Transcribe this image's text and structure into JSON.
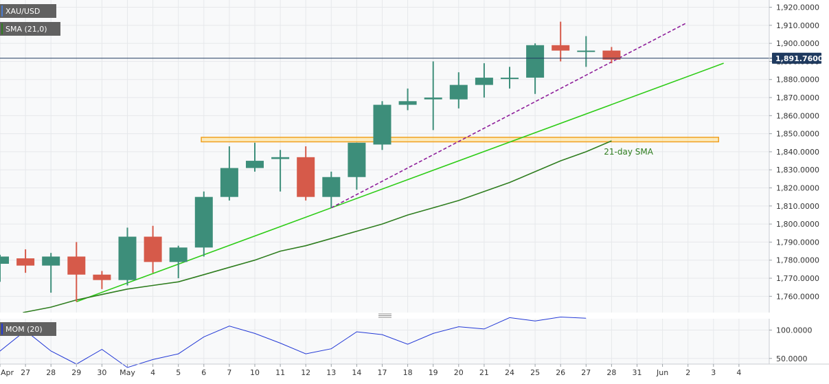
{
  "chart_data": {
    "type": "candlestick",
    "symbol": "XAU/USD",
    "indicator_label": "SMA (21,0)",
    "last_price": 1891.76,
    "last_price_label": "1,891.7600",
    "x_labels": [
      "Apr",
      "27",
      "28",
      "29",
      "30",
      "May",
      "4",
      "5",
      "6",
      "7",
      "10",
      "11",
      "12",
      "13",
      "14",
      "17",
      "18",
      "19",
      "20",
      "21",
      "24",
      "25",
      "26",
      "27",
      "28",
      "31",
      "Jun",
      "2",
      "3",
      "4"
    ],
    "y_ticks": [
      1760,
      1770,
      1780,
      1790,
      1800,
      1810,
      1820,
      1830,
      1840,
      1850,
      1860,
      1870,
      1880,
      1890,
      1900,
      1910,
      1920
    ],
    "y_tick_labels": [
      "1,760.0000",
      "1,770.0000",
      "1,780.0000",
      "1,790.0000",
      "1,800.0000",
      "1,810.0000",
      "1,820.0000",
      "1,830.0000",
      "1,840.0000",
      "1,850.0000",
      "1,860.0000",
      "1,870.0000",
      "1,880.0000",
      "1,890.0000",
      "1,900.0000",
      "1,910.0000",
      "1,920.0000"
    ],
    "ylim": [
      1751,
      1924
    ],
    "candles": [
      {
        "slot": 0,
        "o": 1778,
        "h": 1783,
        "l": 1768,
        "c": 1782
      },
      {
        "slot": 1,
        "o": 1781,
        "h": 1786,
        "l": 1773,
        "c": 1777
      },
      {
        "slot": 2,
        "o": 1777,
        "h": 1784,
        "l": 1762,
        "c": 1782
      },
      {
        "slot": 3,
        "o": 1782,
        "h": 1790,
        "l": 1757,
        "c": 1772
      },
      {
        "slot": 4,
        "o": 1772,
        "h": 1774,
        "l": 1764,
        "c": 1769
      },
      {
        "slot": 5,
        "o": 1769,
        "h": 1798,
        "l": 1766,
        "c": 1793
      },
      {
        "slot": 6,
        "o": 1793,
        "h": 1799,
        "l": 1773,
        "c": 1779
      },
      {
        "slot": 7,
        "o": 1779,
        "h": 1788,
        "l": 1770,
        "c": 1787
      },
      {
        "slot": 8,
        "o": 1787,
        "h": 1818,
        "l": 1782,
        "c": 1815
      },
      {
        "slot": 9,
        "o": 1815,
        "h": 1843,
        "l": 1813,
        "c": 1831
      },
      {
        "slot": 10,
        "o": 1831,
        "h": 1845,
        "l": 1829,
        "c": 1835
      },
      {
        "slot": 11,
        "o": 1836,
        "h": 1841,
        "l": 1818,
        "c": 1837
      },
      {
        "slot": 12,
        "o": 1837,
        "h": 1843,
        "l": 1813,
        "c": 1815
      },
      {
        "slot": 13,
        "o": 1815,
        "h": 1829,
        "l": 1809,
        "c": 1826
      },
      {
        "slot": 14,
        "o": 1826,
        "h": 1845,
        "l": 1819,
        "c": 1845
      },
      {
        "slot": 15,
        "o": 1844,
        "h": 1868,
        "l": 1841,
        "c": 1866
      },
      {
        "slot": 16,
        "o": 1866,
        "h": 1875,
        "l": 1863,
        "c": 1868
      },
      {
        "slot": 17,
        "o": 1869,
        "h": 1890,
        "l": 1852,
        "c": 1870
      },
      {
        "slot": 18,
        "o": 1869,
        "h": 1884,
        "l": 1864,
        "c": 1877
      },
      {
        "slot": 19,
        "o": 1877,
        "h": 1889,
        "l": 1870,
        "c": 1881
      },
      {
        "slot": 20,
        "o": 1881,
        "h": 1887,
        "l": 1875,
        "c": 1881
      },
      {
        "slot": 21,
        "o": 1881,
        "h": 1900,
        "l": 1872,
        "c": 1899
      },
      {
        "slot": 22,
        "o": 1899,
        "h": 1912,
        "l": 1890,
        "c": 1896
      },
      {
        "slot": 23,
        "o": 1896,
        "h": 1904,
        "l": 1887,
        "c": 1896
      },
      {
        "slot": 24,
        "o": 1896,
        "h": 1898,
        "l": 1889,
        "c": 1891
      }
    ],
    "sma_21": [
      {
        "slot": 0.9,
        "v": 1751
      },
      {
        "slot": 2,
        "v": 1754
      },
      {
        "slot": 3,
        "v": 1758
      },
      {
        "slot": 4,
        "v": 1761
      },
      {
        "slot": 5,
        "v": 1764
      },
      {
        "slot": 6,
        "v": 1766
      },
      {
        "slot": 7,
        "v": 1768
      },
      {
        "slot": 8,
        "v": 1772
      },
      {
        "slot": 9,
        "v": 1776
      },
      {
        "slot": 10,
        "v": 1780
      },
      {
        "slot": 11,
        "v": 1785
      },
      {
        "slot": 12,
        "v": 1788
      },
      {
        "slot": 13,
        "v": 1792
      },
      {
        "slot": 14,
        "v": 1796
      },
      {
        "slot": 15,
        "v": 1800
      },
      {
        "slot": 16,
        "v": 1805
      },
      {
        "slot": 17,
        "v": 1809
      },
      {
        "slot": 18,
        "v": 1813
      },
      {
        "slot": 19,
        "v": 1818
      },
      {
        "slot": 20,
        "v": 1823
      },
      {
        "slot": 21,
        "v": 1829
      },
      {
        "slot": 22,
        "v": 1835
      },
      {
        "slot": 23,
        "v": 1840
      },
      {
        "slot": 24,
        "v": 1846
      }
    ],
    "support_trendline": {
      "from": {
        "slot": 3,
        "v": 1757
      },
      "to": {
        "slot": 28.4,
        "v": 1889
      }
    },
    "dashed_trendline": {
      "from": {
        "slot": 13,
        "v": 1809
      },
      "to": {
        "slot": 26.9,
        "v": 1911
      }
    },
    "resistance_zone": {
      "slot_from": 7.9,
      "slot_to": 28.2,
      "v_low": 1845.5,
      "v_high": 1848
    },
    "sma_annotation": {
      "text": "21-day SMA",
      "slot": 23.7,
      "v": 1840
    },
    "momentum": {
      "label": "MOM (20)",
      "y_tick_labels": [
        "100.0000",
        "50.0000"
      ],
      "y_ticks": [
        100,
        50
      ],
      "ylim": [
        40,
        120
      ],
      "points": [
        {
          "slot": -1,
          "v": 47
        },
        {
          "slot": 0,
          "v": 63
        },
        {
          "slot": 1,
          "v": 99
        },
        {
          "slot": 2,
          "v": 63
        },
        {
          "slot": 3,
          "v": 40
        },
        {
          "slot": 4,
          "v": 66
        },
        {
          "slot": 5,
          "v": 34
        },
        {
          "slot": 6,
          "v": 48
        },
        {
          "slot": 7,
          "v": 58
        },
        {
          "slot": 8,
          "v": 88
        },
        {
          "slot": 9,
          "v": 107
        },
        {
          "slot": 10,
          "v": 94
        },
        {
          "slot": 11,
          "v": 77
        },
        {
          "slot": 12,
          "v": 58
        },
        {
          "slot": 13,
          "v": 67
        },
        {
          "slot": 14,
          "v": 97
        },
        {
          "slot": 15,
          "v": 92
        },
        {
          "slot": 16,
          "v": 75
        },
        {
          "slot": 17,
          "v": 94
        },
        {
          "slot": 18,
          "v": 106
        },
        {
          "slot": 19,
          "v": 102
        },
        {
          "slot": 20,
          "v": 122
        },
        {
          "slot": 21,
          "v": 116
        },
        {
          "slot": 22,
          "v": 123
        },
        {
          "slot": 23,
          "v": 121
        }
      ]
    },
    "colors": {
      "bull": "#3d8e7a",
      "bear": "#d65a4a",
      "sma": "#2e7d1e",
      "support": "#2ecc17",
      "dashed": "#8e1e9a",
      "zone_fill": "#ffe08a",
      "zone_stroke": "#f0a020",
      "momentum": "#2238d6",
      "price_line": "#1f3a5f",
      "annotation": "#2e7d1e"
    }
  }
}
